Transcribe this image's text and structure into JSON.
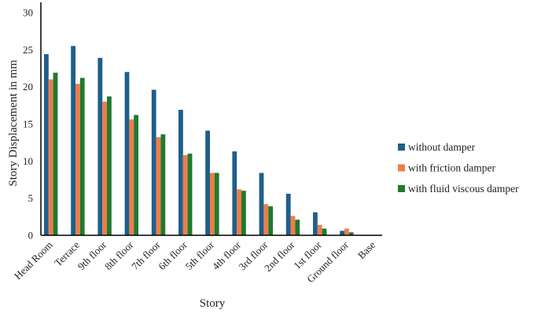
{
  "chart_data": {
    "type": "bar",
    "title": "",
    "xlabel": "Story",
    "ylabel": "Story Displacement in mm",
    "ylim": [
      0,
      30
    ],
    "yticks": [
      0,
      5,
      10,
      15,
      20,
      25,
      30
    ],
    "grid": false,
    "legend_position": "right",
    "categories": [
      "Head Room",
      "Terrace",
      "9th floor",
      "8th floor",
      "7th floor",
      "6th floor",
      "5th floor",
      "4th floor",
      "3rd floor",
      "2nd floor",
      "1st floor",
      "Ground floor",
      "Base"
    ],
    "series": [
      {
        "name": "without damper",
        "color": "#1f5f8b",
        "values": [
          24.4,
          25.5,
          23.9,
          22.0,
          19.6,
          16.9,
          14.1,
          11.3,
          8.4,
          5.6,
          3.1,
          0.6,
          0
        ]
      },
      {
        "name": "with friction damper",
        "color": "#ee7d4a",
        "values": [
          21.0,
          20.4,
          18.0,
          15.6,
          13.2,
          10.8,
          8.4,
          6.2,
          4.2,
          2.6,
          1.4,
          0.9,
          0
        ]
      },
      {
        "name": "with fluid viscous damper",
        "color": "#1e7a2e",
        "values": [
          21.9,
          21.2,
          18.7,
          16.2,
          13.6,
          11.0,
          8.4,
          6.0,
          3.9,
          2.1,
          0.9,
          0.4,
          0
        ]
      }
    ]
  }
}
